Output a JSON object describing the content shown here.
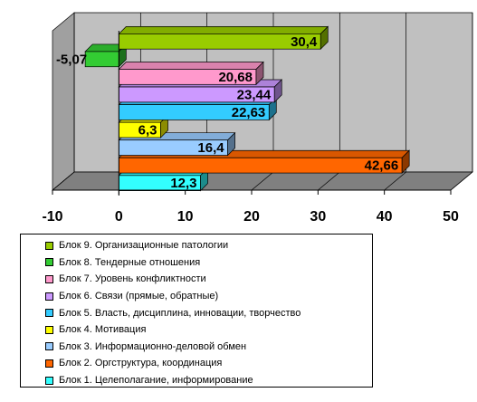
{
  "chart_data": {
    "type": "bar",
    "orientation": "horizontal",
    "style": "3d",
    "xlim": [
      -10,
      50
    ],
    "x_ticks": [
      "-10",
      "0",
      "10",
      "20",
      "30",
      "40",
      "50"
    ],
    "grid": true,
    "legend_position": "bottom",
    "series": [
      {
        "name": "Блок 9. Организационные патологии",
        "value": 30.4,
        "label": "30,4",
        "color": "#99cc00"
      },
      {
        "name": "Блок 8. Тендерные отношения",
        "value": -5.07,
        "label": "-5,07",
        "color": "#33cc33"
      },
      {
        "name": "Блок 7. Уровень конфликтности",
        "value": 20.68,
        "label": "20,68",
        "color": "#ff99cc"
      },
      {
        "name": "Блок 6. Связи (прямые, обратные)",
        "value": 23.44,
        "label": "23,44",
        "color": "#cc99ff"
      },
      {
        "name": "Блок 5. Власть, дисциплина, инновации, творчество",
        "value": 22.63,
        "label": "22,63",
        "color": "#33ccff"
      },
      {
        "name": "Блок 4. Мотивация",
        "value": 6.3,
        "label": "6,3",
        "color": "#ffff00"
      },
      {
        "name": "Блок 3. Информационно-деловой обмен",
        "value": 16.4,
        "label": "16,4",
        "color": "#99ccff"
      },
      {
        "name": "Блок 2. Оргструктура, координация",
        "value": 42.66,
        "label": "42,66",
        "color": "#ff6600"
      },
      {
        "name": "Блок 1. Целеполагание, информирование",
        "value": 12.3,
        "label": "12,3",
        "color": "#33ffff"
      }
    ]
  }
}
